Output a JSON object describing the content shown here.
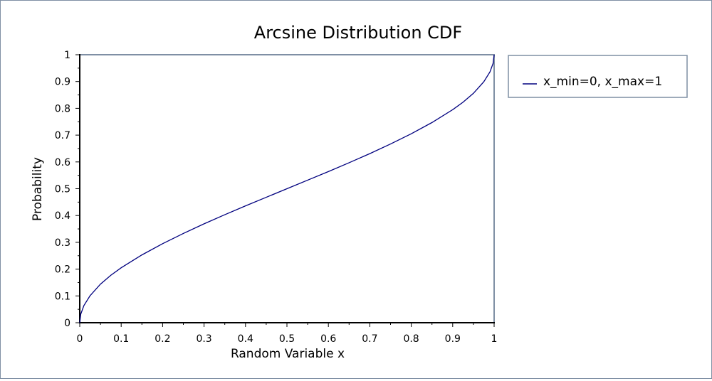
{
  "chart_data": {
    "type": "line",
    "title": "Arcsine Distribution CDF",
    "xlabel": "Random Variable x",
    "ylabel": "Probability",
    "xlim": [
      0,
      1
    ],
    "ylim": [
      0,
      1
    ],
    "xticks": [
      "0",
      "0.1",
      "0.2",
      "0.3",
      "0.4",
      "0.5",
      "0.6",
      "0.7",
      "0.8",
      "0.9",
      "1"
    ],
    "yticks": [
      "0",
      "0.1",
      "0.2",
      "0.3",
      "0.4",
      "0.5",
      "0.6",
      "0.7",
      "0.8",
      "0.9",
      "1"
    ],
    "grid": false,
    "legend_position": "right",
    "series": [
      {
        "name": "x_min=0, x_max=1",
        "color": "#00007f",
        "x": [
          0,
          0.0025,
          0.01,
          0.025,
          0.05,
          0.075,
          0.1,
          0.15,
          0.2,
          0.25,
          0.3,
          0.35,
          0.4,
          0.45,
          0.5,
          0.55,
          0.6,
          0.65,
          0.7,
          0.75,
          0.8,
          0.85,
          0.9,
          0.925,
          0.95,
          0.975,
          0.99,
          0.9975,
          1
        ],
        "y": [
          0,
          0.032,
          0.064,
          0.101,
          0.144,
          0.177,
          0.205,
          0.253,
          0.295,
          0.333,
          0.369,
          0.403,
          0.436,
          0.468,
          0.5,
          0.532,
          0.564,
          0.597,
          0.631,
          0.667,
          0.705,
          0.747,
          0.795,
          0.823,
          0.856,
          0.899,
          0.936,
          0.968,
          1
        ]
      }
    ]
  }
}
